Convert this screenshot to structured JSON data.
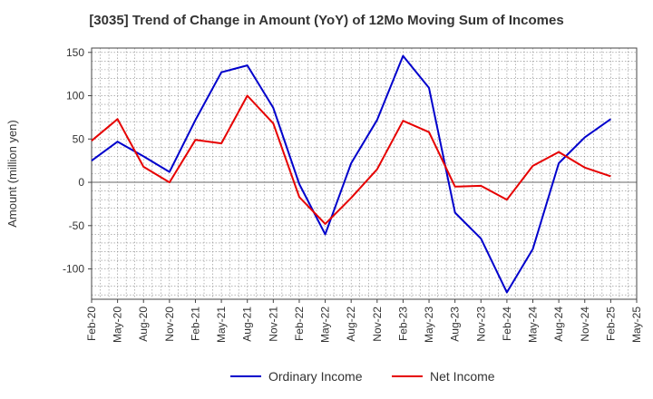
{
  "chart_data": {
    "type": "line",
    "title": "[3035]  Trend of Change in Amount (YoY) of 12Mo Moving Sum of Incomes",
    "xlabel": "",
    "ylabel": "Amount (million yen)",
    "ylim": [
      -135,
      155
    ],
    "yticks": [
      150,
      100,
      50,
      0,
      -50,
      -100
    ],
    "grid": true,
    "legend_position": "bottom",
    "x": [
      "Feb-20",
      "May-20",
      "Aug-20",
      "Nov-20",
      "Feb-21",
      "May-21",
      "Aug-21",
      "Nov-21",
      "Feb-22",
      "May-22",
      "Aug-22",
      "Nov-22",
      "Feb-23",
      "May-23",
      "Aug-23",
      "Nov-23",
      "Feb-24",
      "May-24",
      "Aug-24",
      "Nov-24",
      "Feb-25",
      "May-25"
    ],
    "series": [
      {
        "name": "Ordinary Income",
        "color": "#0000cc",
        "values": [
          25,
          47,
          30,
          12,
          72,
          127,
          135,
          86,
          -2,
          -60,
          22,
          72,
          146,
          109,
          -35,
          -65,
          -127,
          -77,
          22,
          52,
          73,
          null
        ]
      },
      {
        "name": "Net Income",
        "color": "#e60000",
        "values": [
          48,
          73,
          18,
          0,
          49,
          45,
          100,
          68,
          -17,
          -48,
          -18,
          15,
          71,
          58,
          -5,
          -4,
          -20,
          19,
          35,
          17,
          7,
          null
        ]
      }
    ]
  }
}
